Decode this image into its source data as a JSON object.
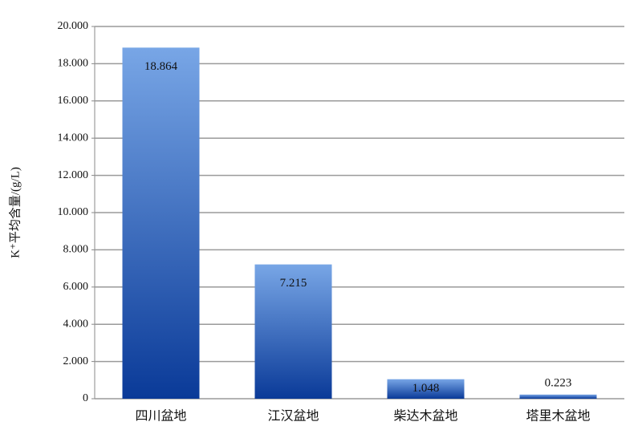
{
  "chart_data": {
    "type": "bar",
    "y_label": "K⁺平均含量/(g/L)",
    "categories": [
      "四川盆地",
      "江汉盆地",
      "柴达木盆地",
      "塔里木盆地"
    ],
    "values": [
      18.864,
      7.215,
      1.048,
      0.223
    ],
    "color": [
      "#78a6e6",
      "#0a3a98"
    ],
    "ylim": [
      0,
      20
    ],
    "yticks": [
      0,
      {
        "value": 2,
        "label": "2.000"
      },
      {
        "value": 4,
        "label": "4.000"
      },
      {
        "value": 6,
        "label": "6.000"
      },
      {
        "value": 8,
        "label": "8.000"
      },
      {
        "value": 10,
        "label": "10.000"
      },
      {
        "value": 12,
        "label": "12.000"
      },
      {
        "value": 14,
        "label": "14.000"
      },
      {
        "value": 16,
        "label": "16.000"
      },
      {
        "value": 18,
        "label": "18.000"
      },
      {
        "value": 20,
        "label": "20.000"
      }
    ],
    "grid": true
  }
}
